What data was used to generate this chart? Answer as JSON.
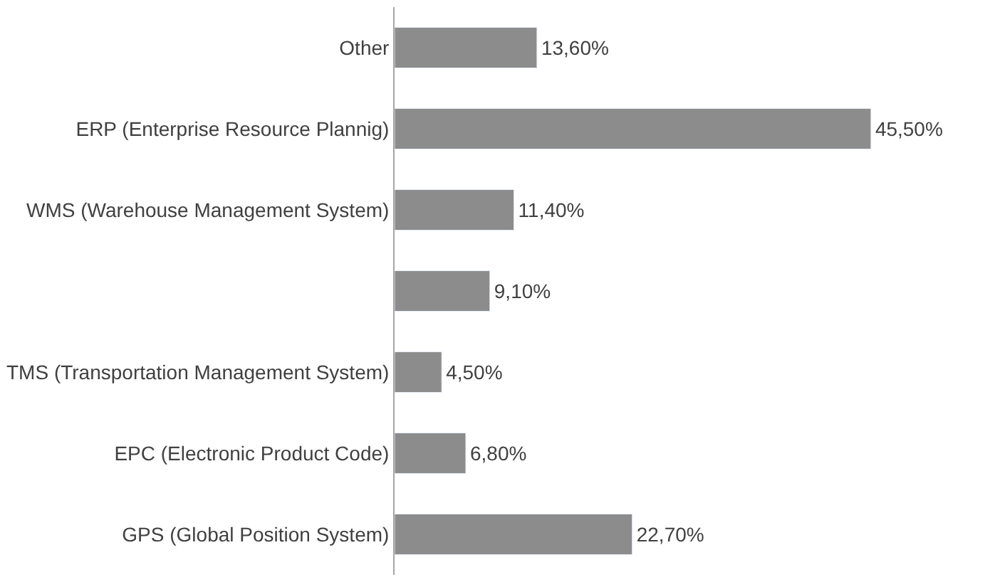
{
  "chart_data": {
    "type": "bar",
    "orientation": "horizontal",
    "categories": [
      "Other",
      "ERP (Enterprise Resource Plannig)",
      "WMS (Warehouse Management System)",
      null,
      "TMS (Transportation Management System)",
      "EPC (Electronic Product Code)",
      "GPS (Global Position System)"
    ],
    "values": [
      13.6,
      45.5,
      11.4,
      9.1,
      4.5,
      6.8,
      22.7
    ],
    "value_labels": [
      "13,60%",
      "45,50%",
      "11,40%",
      "9,10%",
      "4,50%",
      "6,80%",
      "22,70%"
    ],
    "color": "#8c8c8c"
  }
}
